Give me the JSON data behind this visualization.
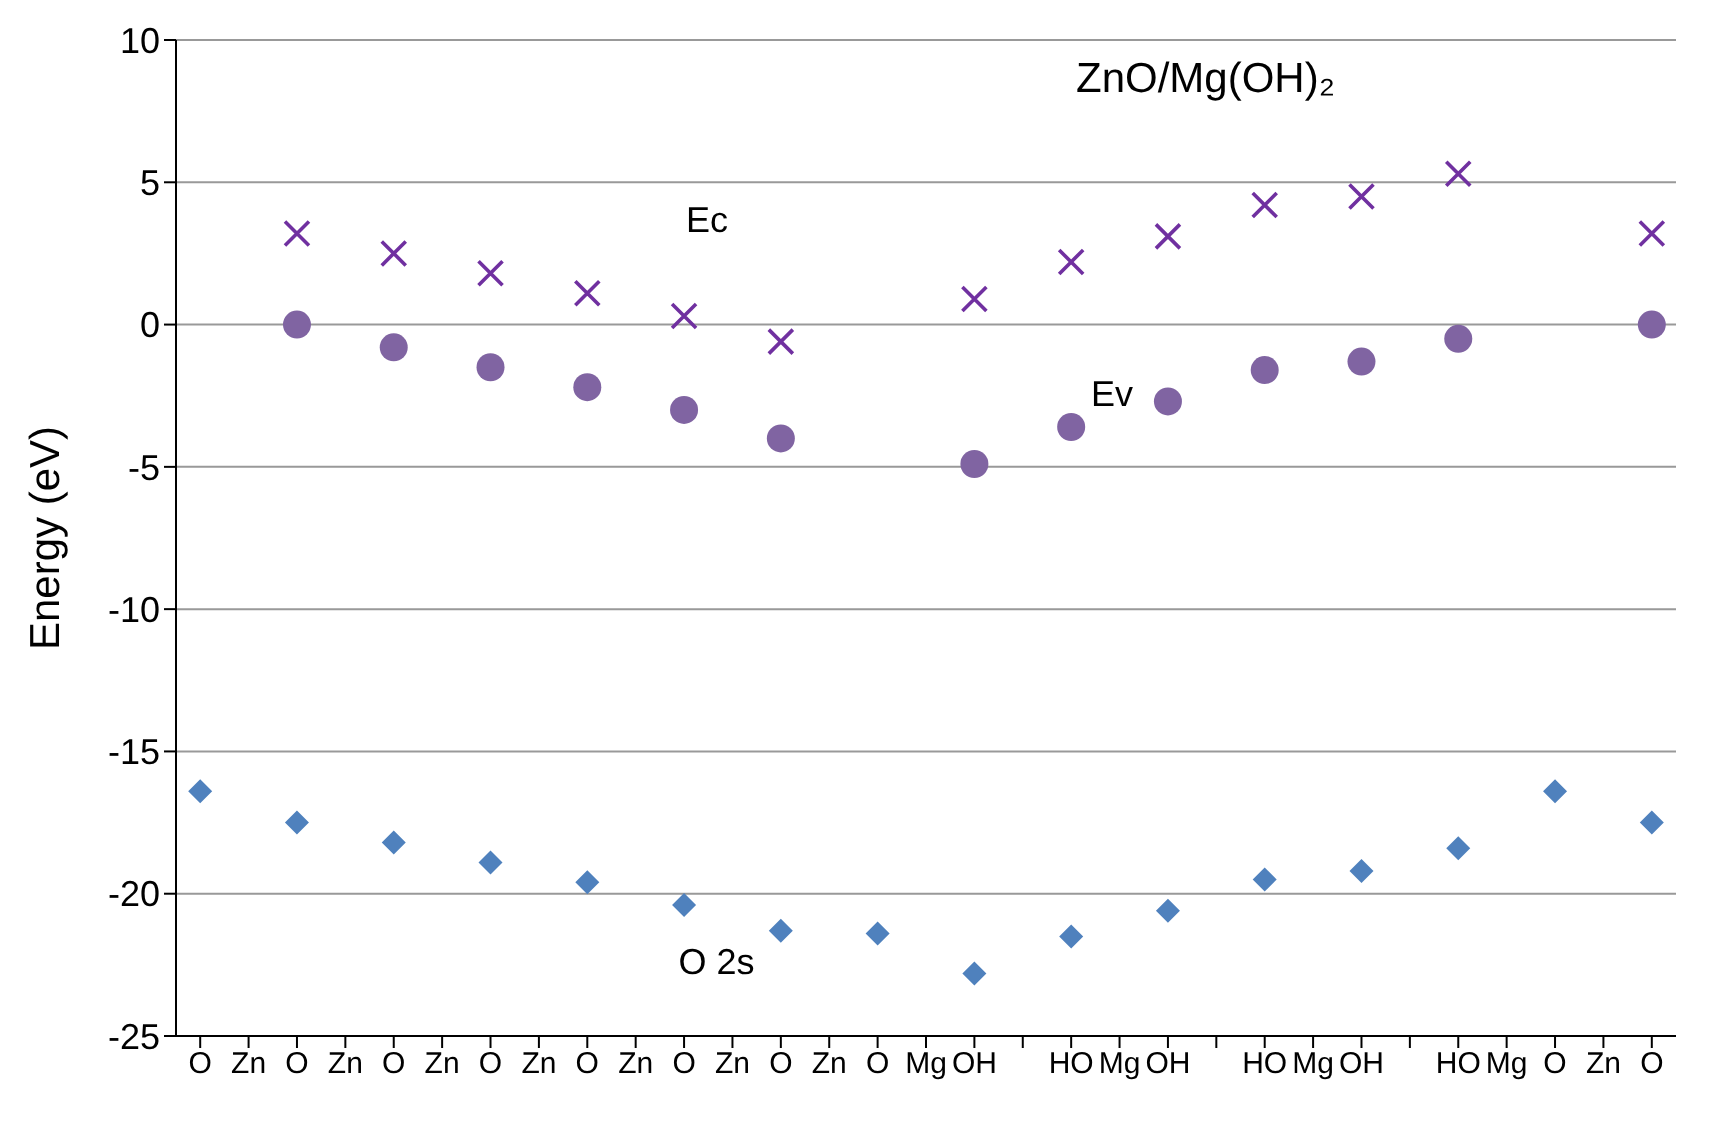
{
  "chart_data": {
    "type": "scatter",
    "title": "ZnO/Mg(OH)₂",
    "ylabel": "Energy (eV)",
    "categories": [
      "O",
      "Zn",
      "O",
      "Zn",
      "O",
      "Zn",
      "O",
      "Zn",
      "O",
      "Zn",
      "O",
      "Zn",
      "O",
      "Zn",
      "O",
      "Mg",
      "OH",
      null,
      "HO",
      "Mg",
      "OH",
      null,
      "HO",
      "Mg",
      "OH",
      null,
      "HO",
      "Mg",
      "O",
      "Zn",
      "O"
    ],
    "series": [
      {
        "color": "#7030a0",
        "marker": "cross",
        "values": [
          null,
          null,
          3.2,
          null,
          2.5,
          null,
          1.8,
          null,
          1.1,
          null,
          0.3,
          null,
          -0.6,
          null,
          null,
          null,
          0.9,
          null,
          2.2,
          null,
          3.1,
          null,
          4.2,
          null,
          4.5,
          null,
          5.3,
          null,
          null,
          null,
          3.2
        ]
      },
      {
        "color": "#8064a2",
        "marker": "circle",
        "values": [
          null,
          null,
          0,
          null,
          -0.8,
          null,
          -1.5,
          null,
          -2.2,
          null,
          -3.0,
          null,
          -4.0,
          null,
          null,
          null,
          -4.9,
          null,
          -3.6,
          null,
          -2.7,
          null,
          -1.6,
          null,
          -1.3,
          null,
          -0.5,
          null,
          null,
          null,
          0
        ]
      },
      {
        "color": "#4f81bd",
        "marker": "diamond",
        "values": [
          -16.4,
          null,
          -17.5,
          null,
          -18.2,
          null,
          -18.9,
          null,
          -19.6,
          null,
          -20.4,
          null,
          -21.3,
          null,
          -21.4,
          null,
          -22.8,
          null,
          -21.5,
          null,
          -20.6,
          null,
          -19.5,
          null,
          -19.2,
          null,
          -18.4,
          null,
          -16.4,
          null,
          -17.5
        ]
      }
    ],
    "annotations": [
      "Ec",
      "Ev",
      "O 2s"
    ],
    "ylim": [
      -25,
      10
    ],
    "yticks": [
      -25,
      -20,
      -15,
      -10,
      -5,
      0,
      5,
      10
    ],
    "grid": "y"
  }
}
